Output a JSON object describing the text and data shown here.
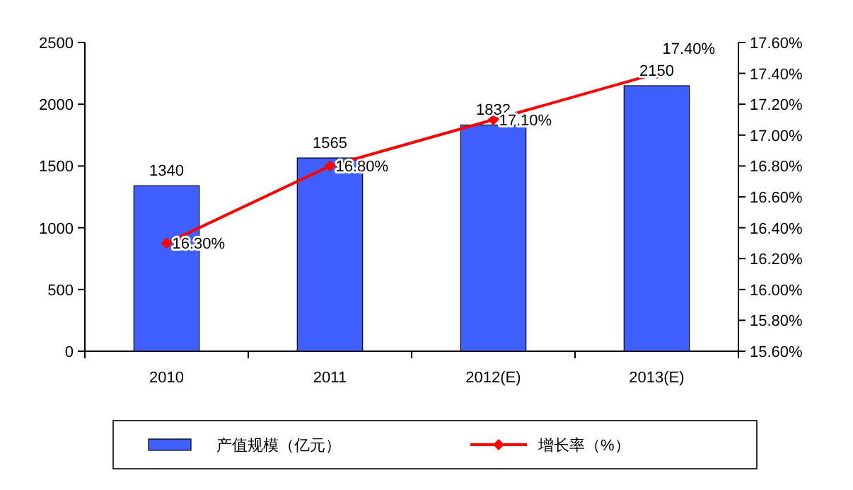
{
  "chart_data": {
    "type": "bar",
    "categories": [
      "2010",
      "2011",
      "2012(E)",
      "2013(E)"
    ],
    "series": [
      {
        "name": "产值规模（亿元）",
        "color": "#3f5fff",
        "values": [
          1340,
          1565,
          1832,
          2150
        ],
        "value_labels": [
          "1340",
          "1565",
          "1832",
          "2150"
        ]
      },
      {
        "name": "增长率（%）",
        "type": "line",
        "axis": "y2",
        "color": "#ff0000",
        "marker": "diamond",
        "values": [
          16.3,
          16.8,
          17.1,
          17.4
        ],
        "value_labels": [
          "16.30%",
          "16.80%",
          "17.10%",
          "17.40%"
        ]
      }
    ],
    "ylim": [
      0,
      2500
    ],
    "yticks": [
      0,
      500,
      1000,
      1500,
      2000,
      2500
    ],
    "y2lim": [
      15.6,
      17.6
    ],
    "y2ticks": [
      {
        "value": 15.6,
        "label": "15.60%"
      },
      {
        "value": 15.8,
        "label": "15.80%"
      },
      {
        "value": 16.0,
        "label": "16.00%"
      },
      {
        "value": 16.2,
        "label": "16.20%"
      },
      {
        "value": 16.4,
        "label": "16.40%"
      },
      {
        "value": 16.6,
        "label": "16.60%"
      },
      {
        "value": 16.8,
        "label": "16.80%"
      },
      {
        "value": 17.0,
        "label": "17.00%"
      },
      {
        "value": 17.2,
        "label": "17.20%"
      },
      {
        "value": 17.4,
        "label": "17.40%"
      },
      {
        "value": 17.6,
        "label": "17.60%"
      }
    ],
    "grid": false,
    "legend": "bottom"
  }
}
